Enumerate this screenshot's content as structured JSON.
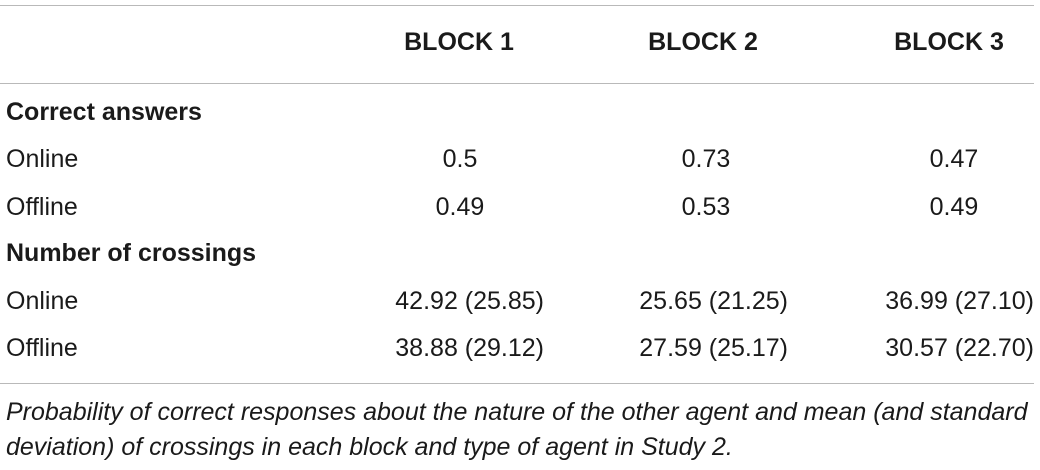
{
  "table": {
    "headers": [
      "",
      "BLOCK 1",
      "BLOCK 2",
      "BLOCK 3"
    ],
    "sections": [
      {
        "title": "Correct answers",
        "rows": [
          {
            "label": "Online",
            "values": [
              "0.5",
              "0.73",
              "0.47"
            ]
          },
          {
            "label": "Offline",
            "values": [
              "0.49",
              "0.53",
              "0.49"
            ]
          }
        ]
      },
      {
        "title": "Number of crossings",
        "rows": [
          {
            "label": "Online",
            "values": [
              "42.92 (25.85)",
              "25.65 (21.25)",
              "36.99 (27.10)"
            ]
          },
          {
            "label": "Offline",
            "values": [
              "38.88 (29.12)",
              "27.59 (25.17)",
              "30.57 (22.70)"
            ]
          }
        ]
      }
    ],
    "caption": "Probability of correct responses about the nature of the other agent and mean (and standard deviation) of crossings in each block and type of agent in Study 2."
  }
}
